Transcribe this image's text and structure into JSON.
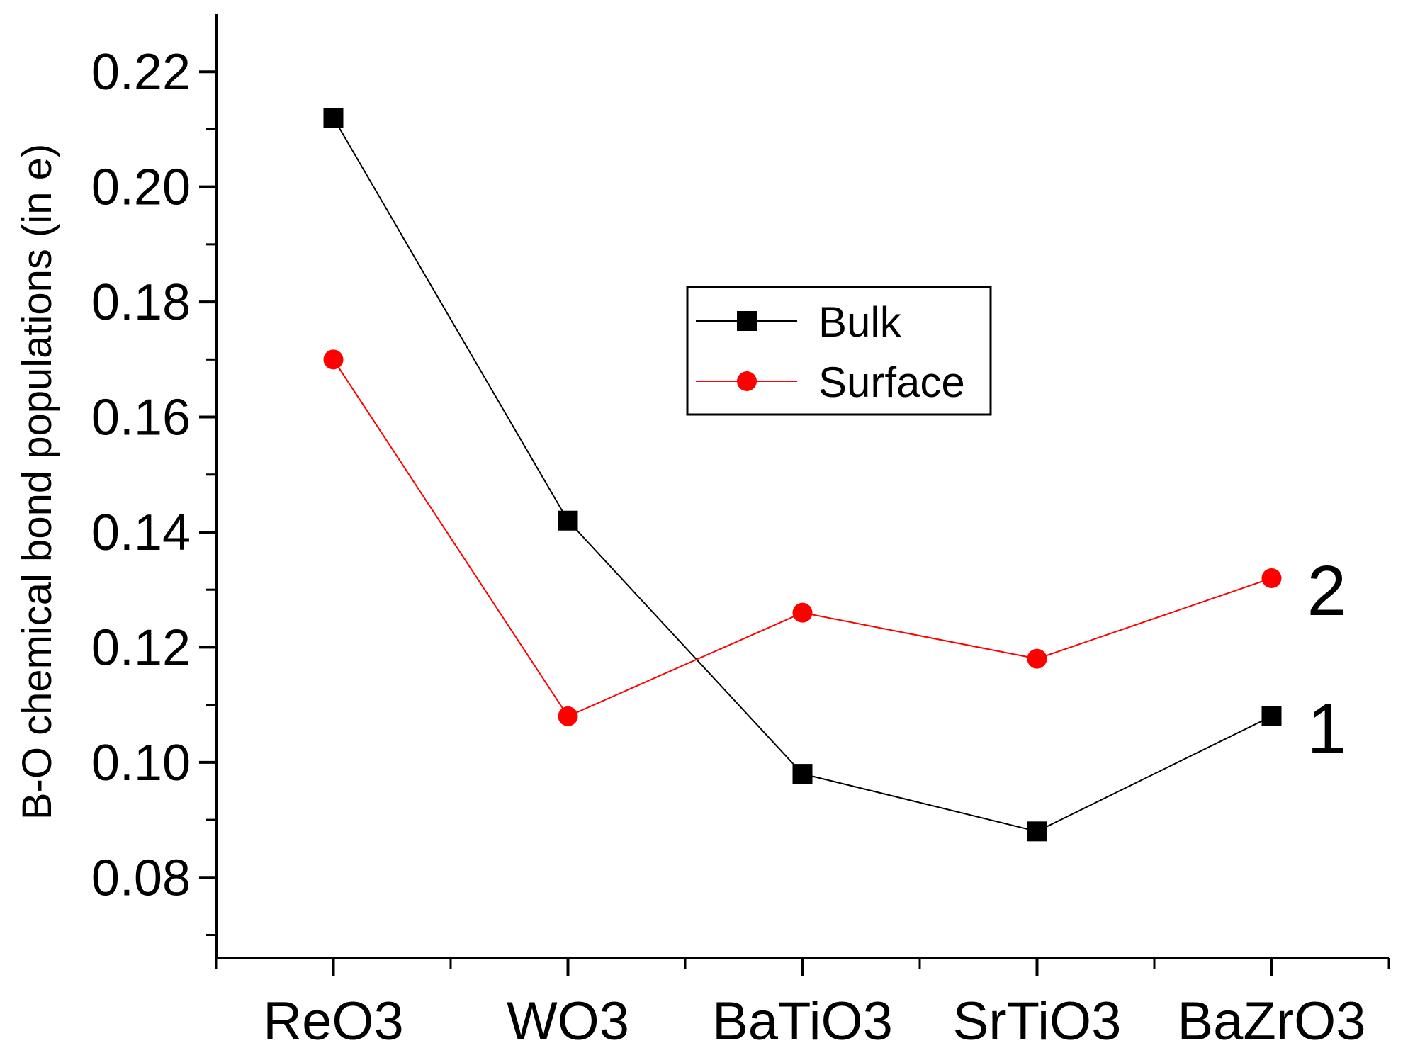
{
  "chart_data": {
    "type": "line",
    "title": "",
    "xlabel": "",
    "ylabel": "B-O chemical bond populations (in e)",
    "categories": [
      "ReO3",
      "WO3",
      "BaTiO3",
      "SrTiO3",
      "BaZrO3"
    ],
    "ylim": [
      0.066,
      0.23
    ],
    "yticks": [
      0.08,
      0.1,
      0.12,
      0.14,
      0.16,
      0.18,
      0.2,
      0.22
    ],
    "ytick_labels": [
      "0.08",
      "0.10",
      "0.12",
      "0.14",
      "0.16",
      "0.18",
      "0.20",
      "0.22"
    ],
    "series": [
      {
        "name": "Bulk",
        "color": "#000000",
        "marker": "square",
        "end_label": "1",
        "values": [
          0.212,
          0.142,
          0.098,
          0.088,
          0.108
        ]
      },
      {
        "name": "Surface",
        "color": "#ff0000",
        "marker": "circle",
        "end_label": "2",
        "values": [
          0.17,
          0.108,
          0.126,
          0.118,
          0.132
        ]
      }
    ],
    "legend": {
      "position": "center"
    },
    "grid": false
  }
}
